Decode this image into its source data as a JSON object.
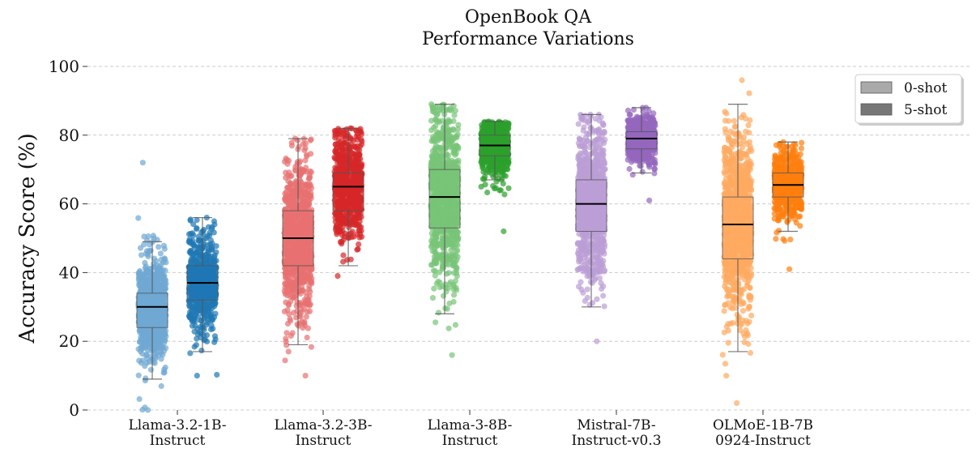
{
  "chart_data": {
    "type": "box-strip",
    "title": [
      "OpenBook QA",
      "Performance Variations"
    ],
    "ylabel": "Accuracy Score (%)",
    "xlabel": "",
    "ylim": [
      0,
      100
    ],
    "yticks": [
      0,
      20,
      40,
      60,
      80,
      100
    ],
    "grid": "horizontal-dashed",
    "legend": {
      "placement": "top-right",
      "entries": [
        {
          "label": "0-shot",
          "color": "#aaaaaa"
        },
        {
          "label": "5-shot",
          "color": "#777777"
        }
      ]
    },
    "categories": [
      {
        "label": [
          "Llama-3.2-1B-",
          "Instruct"
        ],
        "color_0shot": "#6fa8d3",
        "color_5shot": "#1f77b4"
      },
      {
        "label": [
          "Llama-3.2-3B-",
          "Instruct"
        ],
        "color_0shot": "#e87070",
        "color_5shot": "#d62728"
      },
      {
        "label": [
          "Llama-3-8B-",
          "Instruct"
        ],
        "color_0shot": "#77c477",
        "color_5shot": "#2ca02c"
      },
      {
        "label": [
          "Mistral-7B-",
          "Instruct-v0.3"
        ],
        "color_0shot": "#bb9ed6",
        "color_5shot": "#9467bd"
      },
      {
        "label": [
          "OLMoE-1B-7B",
          "0924-Instruct"
        ],
        "color_0shot": "#ffaa60",
        "color_5shot": "#ff7f0e"
      }
    ],
    "series": [
      {
        "name": "0-shot",
        "box": [
          {
            "min": 9,
            "q1": 24,
            "median": 30,
            "q3": 34,
            "max": 49,
            "points_min": 0,
            "points_max": 72
          },
          {
            "min": 19,
            "q1": 42,
            "median": 50,
            "q3": 58,
            "max": 79,
            "points_min": 10,
            "points_max": 79
          },
          {
            "min": 28,
            "q1": 53,
            "median": 62,
            "q3": 70,
            "max": 89,
            "points_min": 16,
            "points_max": 89
          },
          {
            "min": 30,
            "q1": 52,
            "median": 60,
            "q3": 67,
            "max": 86,
            "points_min": 20,
            "points_max": 86
          },
          {
            "min": 17,
            "q1": 44,
            "median": 54,
            "q3": 62,
            "max": 89,
            "points_min": 2,
            "points_max": 96
          }
        ]
      },
      {
        "name": "5-shot",
        "box": [
          {
            "min": 17,
            "q1": 32,
            "median": 37,
            "q3": 42,
            "max": 56,
            "points_min": 10,
            "points_max": 56
          },
          {
            "min": 42,
            "q1": 58,
            "median": 65,
            "q3": 69,
            "max": 82,
            "points_min": 39,
            "points_max": 82
          },
          {
            "min": 67,
            "q1": 74,
            "median": 77,
            "q3": 80,
            "max": 84,
            "points_min": 52,
            "points_max": 84
          },
          {
            "min": 69,
            "q1": 76,
            "median": 79,
            "q3": 81,
            "max": 88,
            "points_min": 61,
            "points_max": 88
          },
          {
            "min": 52,
            "q1": 62,
            "median": 65.5,
            "q3": 69,
            "max": 78,
            "points_min": 41,
            "points_max": 78
          }
        ]
      }
    ]
  }
}
